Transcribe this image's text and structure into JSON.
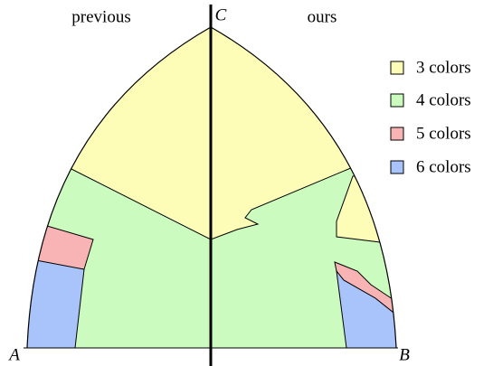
{
  "header": {
    "left": "previous",
    "right": "ours"
  },
  "vertices": {
    "a": "A",
    "b": "B",
    "c": "C"
  },
  "legend": [
    "3 colors",
    "4 colors",
    "5 colors",
    "6 colors"
  ]
}
